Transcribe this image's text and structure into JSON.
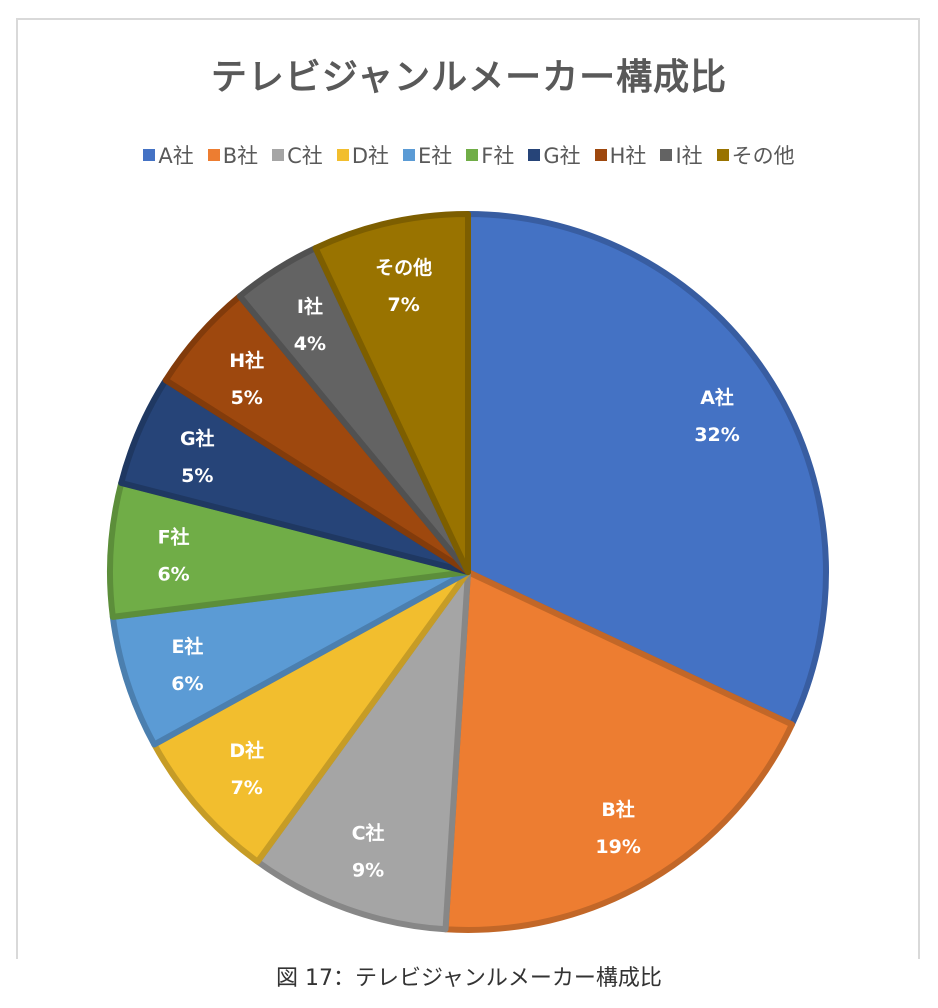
{
  "chart_data": {
    "type": "pie",
    "title": "テレビジャンルメーカー構成比",
    "categories": [
      "A社",
      "B社",
      "C社",
      "D社",
      "E社",
      "F社",
      "G社",
      "H社",
      "I社",
      "その他"
    ],
    "values": [
      32,
      19,
      9,
      7,
      6,
      6,
      5,
      5,
      4,
      7
    ],
    "data_labels": [
      "32%",
      "19%",
      "9%",
      "7%",
      "6%",
      "6%",
      "5%",
      "5%",
      "4%",
      "7%"
    ],
    "colors": [
      "#4472C4",
      "#ED7D31",
      "#A5A5A5",
      "#F2BE2E",
      "#5B9BD5",
      "#70AD47",
      "#264478",
      "#9E480E",
      "#636363",
      "#997300"
    ],
    "start_angle": "12 o'clock",
    "direction": "clockwise",
    "legend_position": "top"
  },
  "caption": "図 17：テレビジャンルメーカー構成比"
}
